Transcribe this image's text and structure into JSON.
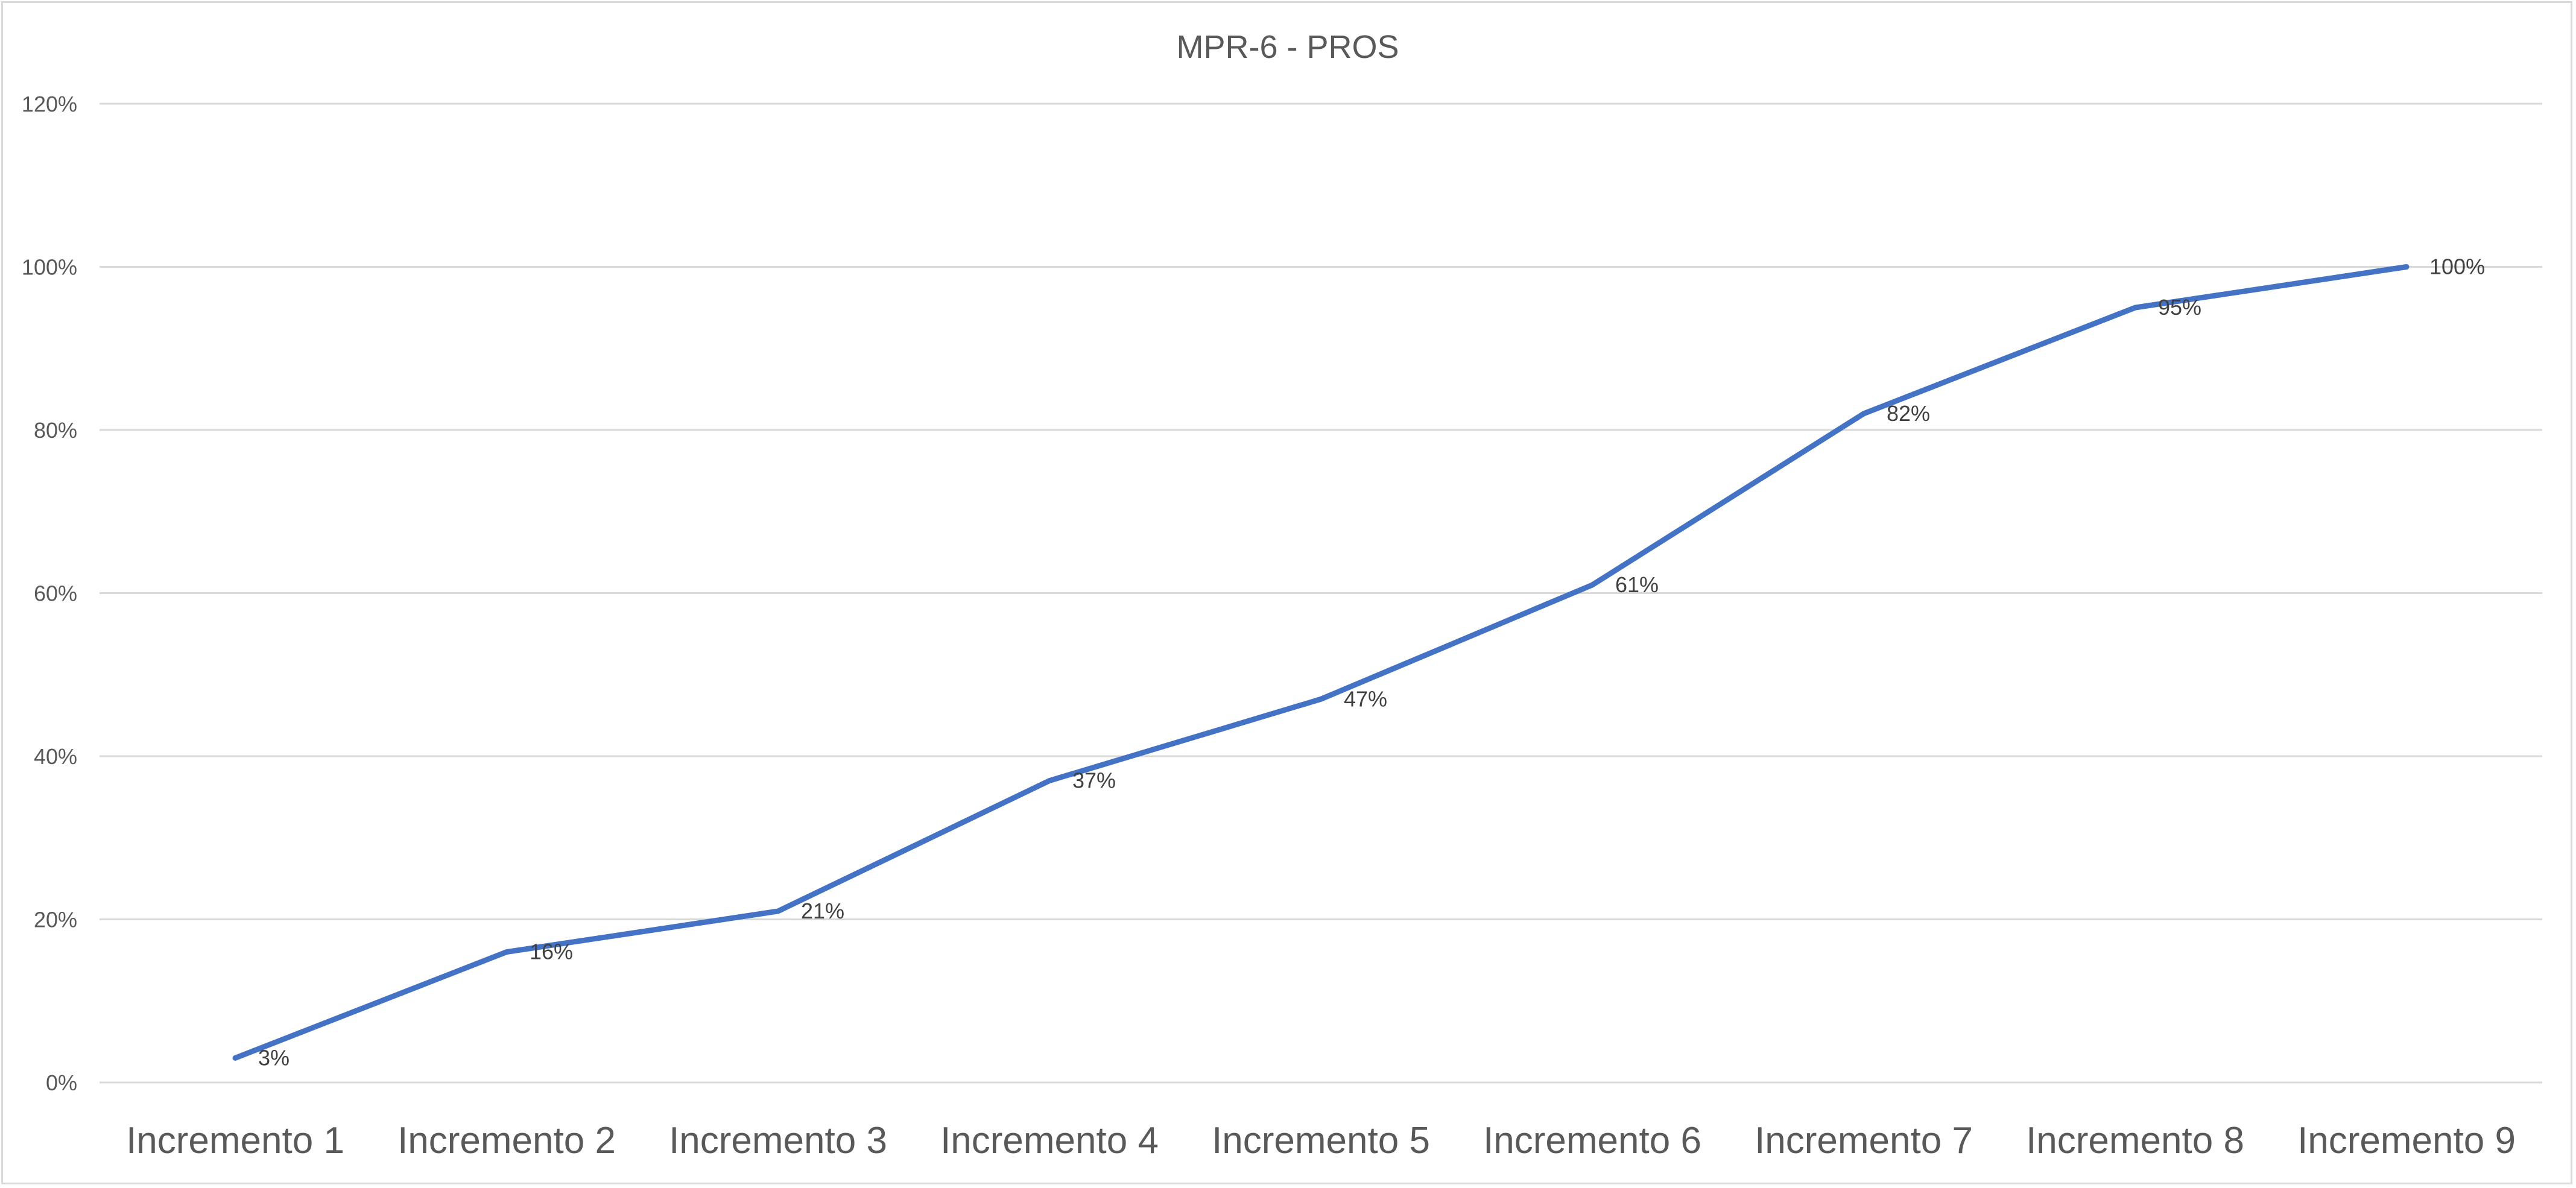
{
  "chart_data": {
    "type": "line",
    "title": "MPR-6 - PROS",
    "categories": [
      "Incremento 1",
      "Incremento 2",
      "Incremento 3",
      "Incremento 4",
      "Incremento 5",
      "Incremento 6",
      "Incremento 7",
      "Incremento 8",
      "Incremento 9"
    ],
    "series": [
      {
        "values": [
          0.03,
          0.16,
          0.21,
          0.37,
          0.47,
          0.61,
          0.82,
          0.95,
          1.0
        ],
        "data_labels": [
          "3%",
          "16%",
          "21%",
          "37%",
          "47%",
          "61%",
          "82%",
          "95%",
          "100%"
        ],
        "color": "#4472c4"
      }
    ],
    "ylim": [
      0,
      1.2
    ],
    "yticks": [
      0,
      0.2,
      0.4,
      0.6,
      0.8,
      1.0,
      1.2
    ],
    "ytick_labels": [
      "0%",
      "20%",
      "40%",
      "60%",
      "80%",
      "100%",
      "120%"
    ],
    "xlabel": "",
    "ylabel": "",
    "grid": true,
    "legend": "none"
  }
}
